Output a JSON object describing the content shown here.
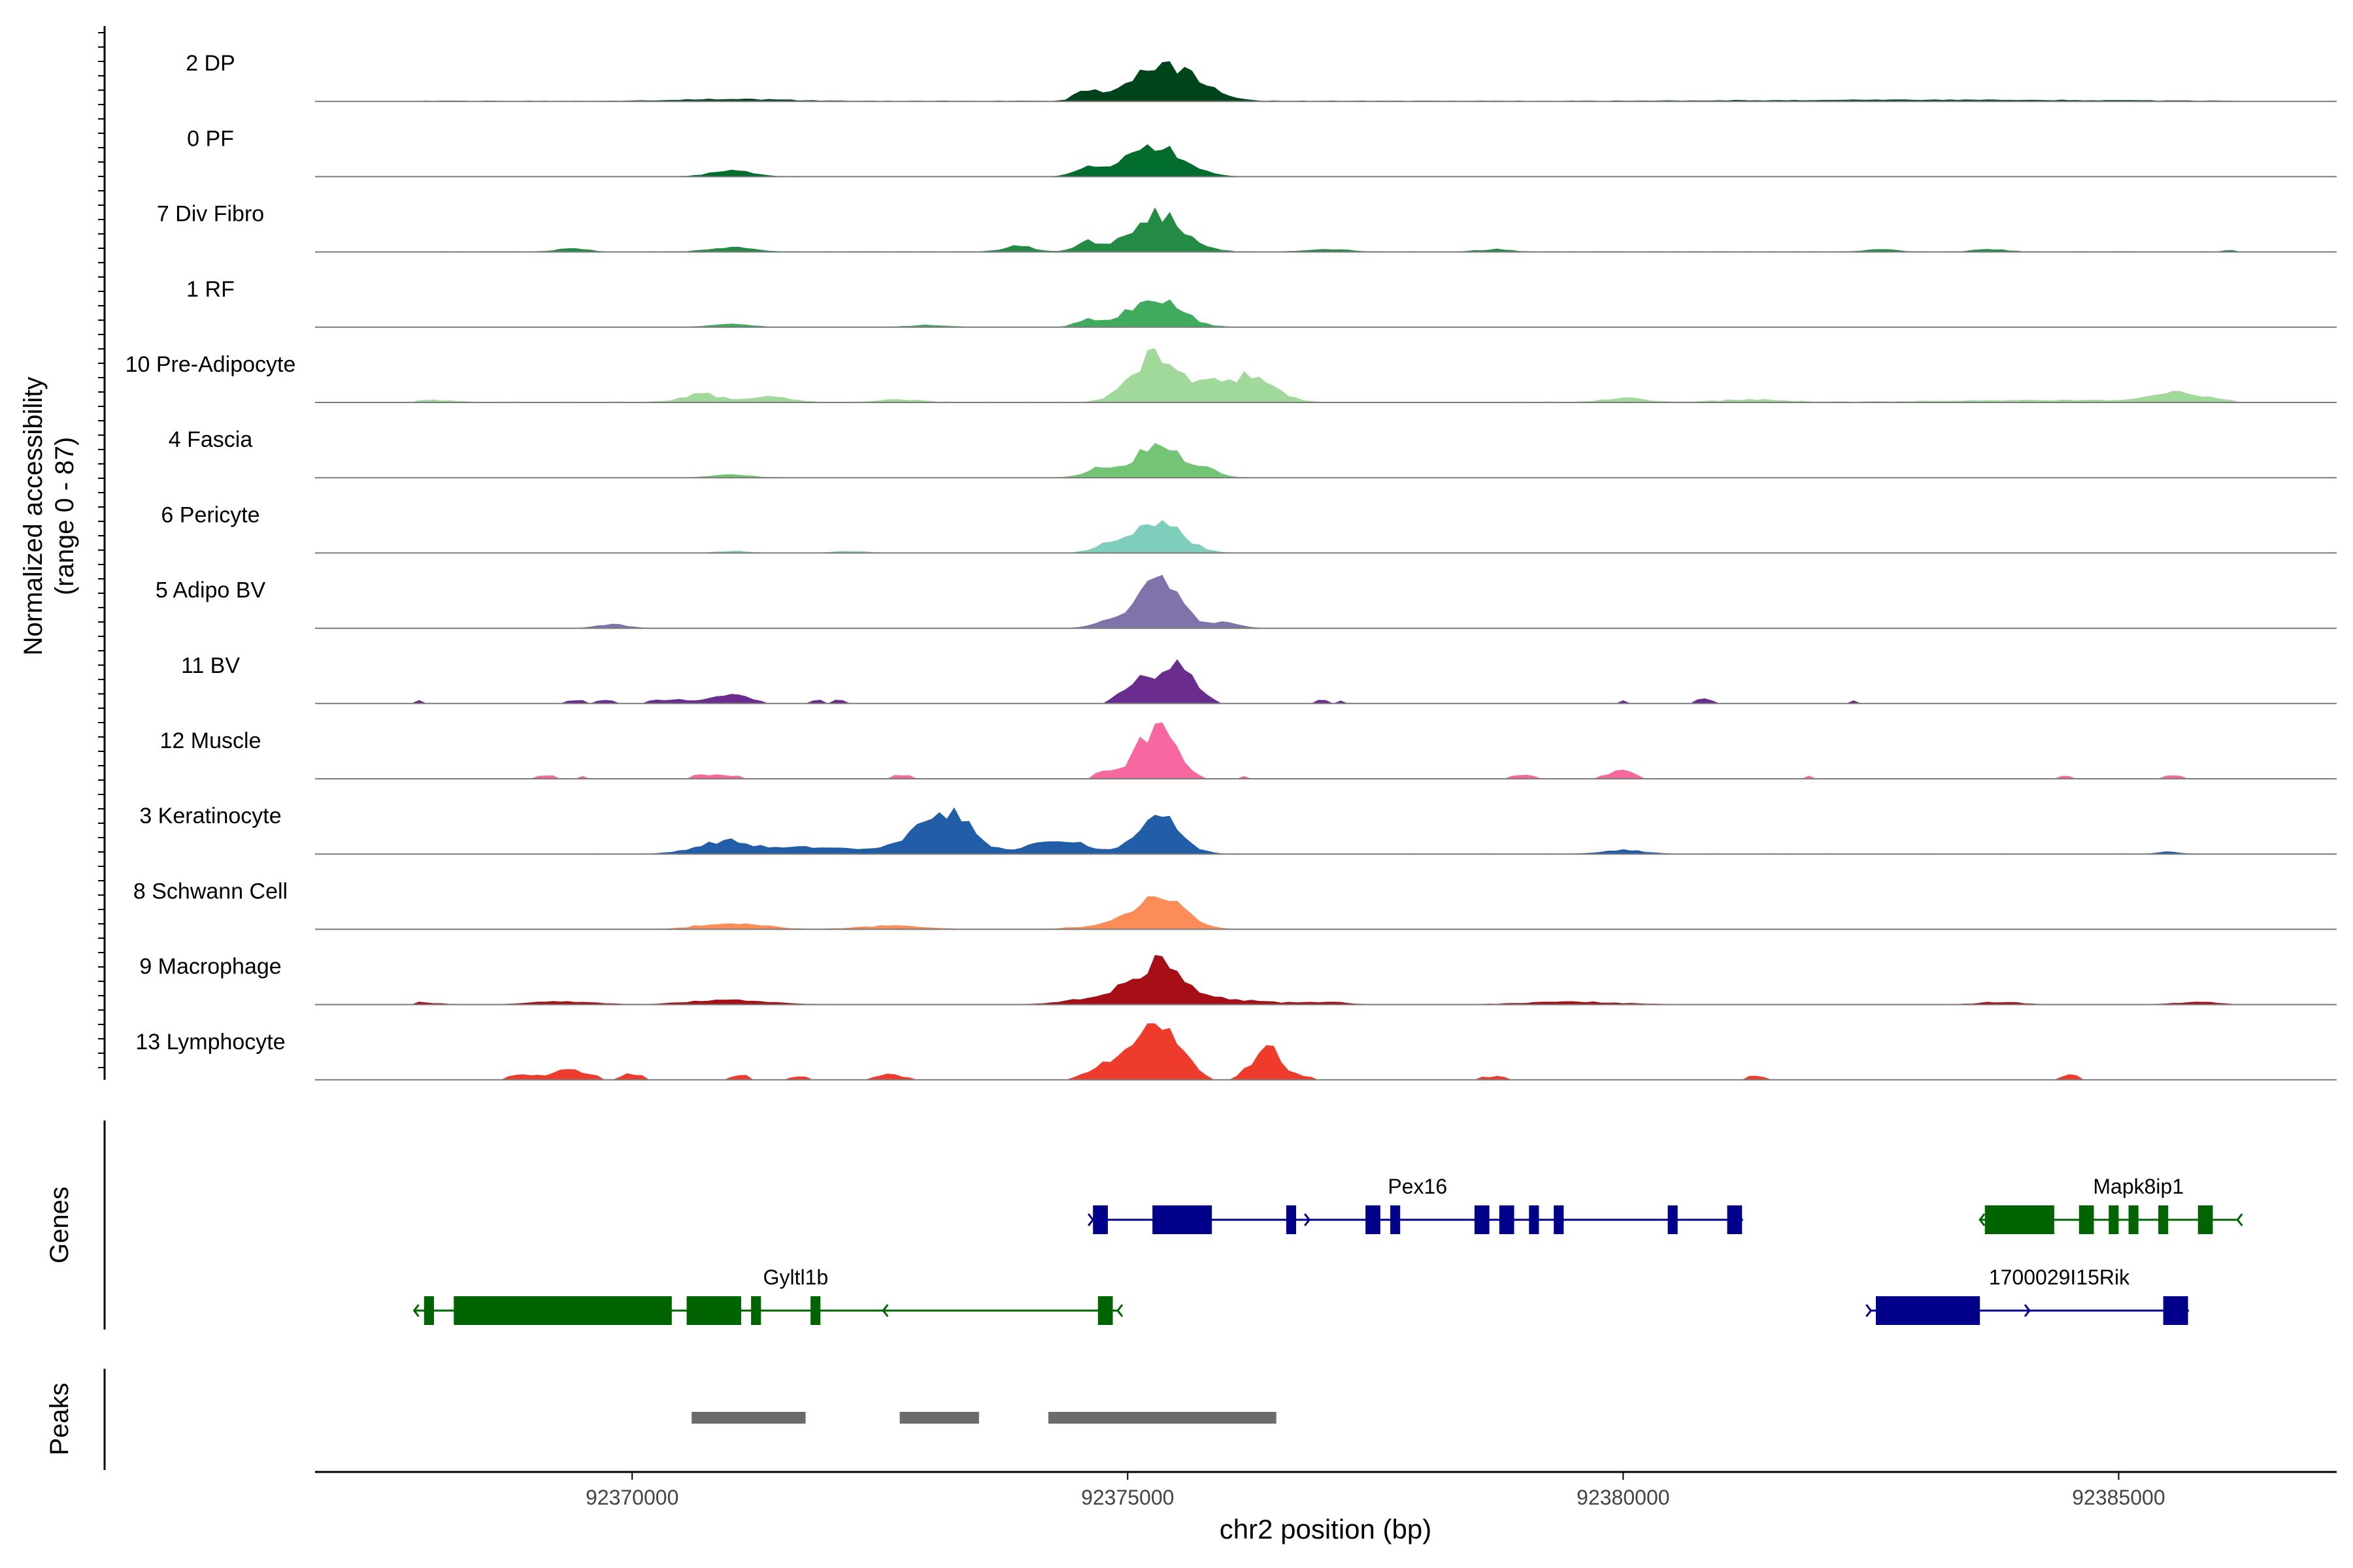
{
  "chart_data": {
    "type": "area",
    "title": "",
    "chromosome": "chr2",
    "xlabel": "chr2 position (bp)",
    "ylabel_line1": "Normalized accessibility",
    "ylabel_line2": "(range 0 - 87)",
    "ylim": [
      0,
      87
    ],
    "xlim": [
      92366800,
      92387200
    ],
    "x_ticks": [
      {
        "value": 92370000,
        "label": "92370000"
      },
      {
        "value": 92375000,
        "label": "92375000"
      },
      {
        "value": 92380000,
        "label": "92380000"
      },
      {
        "value": 92385000,
        "label": "92385000"
      }
    ],
    "track_labels": {
      "genes": "Genes",
      "peaks": "Peaks"
    },
    "bin_size_bp": 75,
    "series": [
      {
        "name": "2 DP",
        "color": "#00441b",
        "bg": 0.8,
        "peaks": [
          [
            92375400,
            320,
            52
          ],
          [
            92374600,
            120,
            16
          ],
          [
            92375000,
            100,
            10
          ],
          [
            92371000,
            500,
            3
          ],
          [
            92383000,
            1500,
            2
          ]
        ]
      },
      {
        "name": "0 PF",
        "color": "#006d2c",
        "bg": 0.6,
        "peaks": [
          [
            92375300,
            260,
            48
          ],
          [
            92374600,
            120,
            16
          ],
          [
            92371000,
            200,
            9
          ],
          [
            92375000,
            100,
            8
          ]
        ]
      },
      {
        "name": "7 Div Fibro",
        "color": "#238b45",
        "bg": 0.6,
        "peaks": [
          [
            92375300,
            260,
            56
          ],
          [
            92374600,
            120,
            15
          ],
          [
            92373900,
            150,
            9
          ],
          [
            92371000,
            200,
            7
          ],
          [
            92369400,
            150,
            5
          ],
          [
            92377000,
            200,
            4
          ],
          [
            92378700,
            150,
            4
          ],
          [
            92382600,
            150,
            4
          ],
          [
            92383700,
            150,
            4
          ],
          [
            92386200,
            100,
            3
          ]
        ]
      },
      {
        "name": "1 RF",
        "color": "#41ab5d",
        "bg": 0.4,
        "peaks": [
          [
            92375300,
            250,
            40
          ],
          [
            92374600,
            120,
            12
          ],
          [
            92375000,
            100,
            8
          ],
          [
            92371000,
            200,
            5
          ],
          [
            92373000,
            200,
            3
          ]
        ]
      },
      {
        "name": "10 Pre-Adipocyte",
        "color": "#a1d99b",
        "bg": 0.8,
        "peaks": [
          [
            92375200,
            180,
            60
          ],
          [
            92375600,
            250,
            30
          ],
          [
            92376300,
            200,
            42
          ],
          [
            92375900,
            150,
            15
          ],
          [
            92370700,
            200,
            12
          ],
          [
            92371400,
            200,
            8
          ],
          [
            92374900,
            150,
            6
          ],
          [
            92380000,
            200,
            6
          ],
          [
            92381300,
            300,
            4
          ],
          [
            92384500,
            1200,
            3
          ],
          [
            92385600,
            250,
            14
          ],
          [
            92372700,
            200,
            4
          ],
          [
            92368000,
            200,
            3
          ]
        ]
      },
      {
        "name": "4 Fascia",
        "color": "#74c476",
        "bg": 0.4,
        "peaks": [
          [
            92375300,
            250,
            45
          ],
          [
            92374700,
            150,
            12
          ],
          [
            92375800,
            150,
            8
          ],
          [
            92371000,
            200,
            4
          ]
        ]
      },
      {
        "name": "6 Pericyte",
        "color": "#7fcdbb",
        "bg": 0.3,
        "peaks": [
          [
            92375300,
            250,
            45
          ],
          [
            92374800,
            150,
            10
          ],
          [
            92371000,
            150,
            3
          ],
          [
            92372200,
            150,
            3
          ]
        ]
      },
      {
        "name": "5 Adipo BV",
        "color": "#8073ac",
        "bg": 0.3,
        "peaks": [
          [
            92375300,
            220,
            70
          ],
          [
            92374800,
            150,
            8
          ],
          [
            92369800,
            150,
            6
          ],
          [
            92376000,
            150,
            8
          ]
        ]
      },
      {
        "name": "11 BV",
        "color": "#6a2c8f",
        "bg": 0.0,
        "sparse": 0.35,
        "peaks": [
          [
            92375500,
            180,
            55
          ],
          [
            92375100,
            150,
            35
          ],
          [
            92371000,
            200,
            12
          ],
          [
            92370400,
            200,
            6
          ],
          [
            92372000,
            300,
            5
          ],
          [
            92374000,
            300,
            4
          ],
          [
            92367800,
            60,
            10
          ],
          [
            92369600,
            300,
            5
          ],
          [
            92377000,
            300,
            5
          ],
          [
            92380000,
            100,
            5
          ],
          [
            92380800,
            100,
            8
          ],
          [
            92382300,
            200,
            5
          ],
          [
            92385400,
            100,
            5
          ]
        ]
      },
      {
        "name": "12 Muscle",
        "color": "#f768a1",
        "bg": 0.0,
        "sparse": 0.35,
        "peaks": [
          [
            92375300,
            180,
            85
          ],
          [
            92374800,
            150,
            10
          ],
          [
            92369300,
            300,
            5
          ],
          [
            92370800,
            300,
            6
          ],
          [
            92372700,
            200,
            5
          ],
          [
            92376200,
            200,
            5
          ],
          [
            92379000,
            200,
            5
          ],
          [
            92380000,
            150,
            12
          ],
          [
            92384400,
            200,
            5
          ],
          [
            92385600,
            200,
            5
          ],
          [
            92381900,
            100,
            4
          ]
        ]
      },
      {
        "name": "3 Keratinocyte",
        "color": "#225ea8",
        "bg": 0.5,
        "peaks": [
          [
            92373100,
            300,
            48
          ],
          [
            92373300,
            150,
            25
          ],
          [
            92375300,
            220,
            55
          ],
          [
            92374300,
            250,
            22
          ],
          [
            92370900,
            250,
            20
          ],
          [
            92371600,
            300,
            10
          ],
          [
            92372200,
            300,
            6
          ],
          [
            92380000,
            200,
            6
          ],
          [
            92385500,
            100,
            4
          ]
        ]
      },
      {
        "name": "8 Schwann Cell",
        "color": "#fc8d59",
        "bg": 0.5,
        "peaks": [
          [
            92375300,
            250,
            50
          ],
          [
            92371000,
            300,
            10
          ],
          [
            92372600,
            300,
            5
          ],
          [
            92374800,
            300,
            5
          ]
        ]
      },
      {
        "name": "9 Macrophage",
        "color": "#a50f15",
        "bg": 0.3,
        "peaks": [
          [
            92375300,
            250,
            60
          ],
          [
            92374700,
            300,
            10
          ],
          [
            92376000,
            400,
            8
          ],
          [
            92371000,
            400,
            7
          ],
          [
            92369300,
            300,
            5
          ],
          [
            92377000,
            200,
            4
          ],
          [
            92379500,
            500,
            4
          ],
          [
            92383800,
            200,
            4
          ],
          [
            92385800,
            200,
            4
          ],
          [
            92367800,
            200,
            4
          ]
        ]
      },
      {
        "name": "13 Lymphocyte",
        "color": "#ef3b2c",
        "bg": 0.0,
        "sparse": 0.3,
        "peaks": [
          [
            92375300,
            230,
            85
          ],
          [
            92376400,
            150,
            50
          ],
          [
            92374800,
            200,
            20
          ],
          [
            92369400,
            200,
            15
          ],
          [
            92368900,
            150,
            8
          ],
          [
            92370000,
            100,
            10
          ],
          [
            92372600,
            150,
            8
          ],
          [
            92371100,
            100,
            8
          ],
          [
            92376800,
            100,
            5
          ],
          [
            92378700,
            200,
            5
          ],
          [
            92381300,
            100,
            7
          ],
          [
            92384500,
            100,
            8
          ],
          [
            92371700,
            100,
            5
          ]
        ]
      }
    ],
    "genes": [
      {
        "name": "Pex16",
        "strand": "+",
        "row": 1,
        "color": "#00008b",
        "start": 92374650,
        "end": 92381200,
        "exons": [
          [
            92374650,
            92374800
          ],
          [
            92375250,
            92375850
          ],
          [
            92376600,
            92376700
          ],
          [
            92377400,
            92377550
          ],
          [
            92377650,
            92377750
          ],
          [
            92378500,
            92378650
          ],
          [
            92378750,
            92378900
          ],
          [
            92379050,
            92379150
          ],
          [
            92379300,
            92379400
          ],
          [
            92380450,
            92380550
          ],
          [
            92381050,
            92381200
          ]
        ]
      },
      {
        "name": "Mapk8ip1",
        "strand": "-",
        "row": 1,
        "color": "#006400",
        "start": 92383600,
        "end": 92386200,
        "exons": [
          [
            92383650,
            92384350
          ],
          [
            92384600,
            92384750
          ],
          [
            92384900,
            92385000
          ],
          [
            92385100,
            92385200
          ],
          [
            92385400,
            92385500
          ],
          [
            92385800,
            92385950
          ]
        ]
      },
      {
        "name": "Gyltl1b",
        "strand": "-",
        "row": 2,
        "color": "#006400",
        "start": 92367800,
        "end": 92374900,
        "exons": [
          [
            92367900,
            92368000
          ],
          [
            92368200,
            92370400
          ],
          [
            92370550,
            92371100
          ],
          [
            92371200,
            92371300
          ],
          [
            92371800,
            92371900
          ],
          [
            92374700,
            92374850
          ]
        ]
      },
      {
        "name": "1700029I15Rik",
        "strand": "+",
        "row": 2,
        "color": "#00008b",
        "start": 92382500,
        "end": 92385700,
        "exons": [
          [
            92382550,
            92383600
          ],
          [
            92385450,
            92385700
          ]
        ]
      }
    ],
    "peaks_track": [
      [
        92370600,
        92371750
      ],
      [
        92372700,
        92373500
      ],
      [
        92374200,
        92376500
      ]
    ]
  }
}
